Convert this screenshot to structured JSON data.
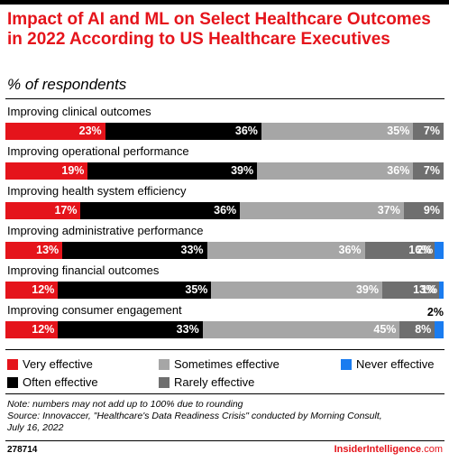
{
  "title": "Impact of AI and ML on Select Healthcare Outcomes in 2022 According to US Healthcare Executives",
  "subtitle": "% of respondents",
  "colors": {
    "very_effective": "#e5141b",
    "often_effective": "#000000",
    "sometimes_effective": "#a6a6a6",
    "rarely_effective": "#6f6f6f",
    "never_effective": "#1a7cf0",
    "title": "#e5141b"
  },
  "chart_data": {
    "type": "bar",
    "orientation": "horizontal",
    "stacked": true,
    "title": "Impact of AI and ML on Select Healthcare Outcomes in 2022 According to US Healthcare Executives",
    "subtitle": "% of respondents",
    "categories": [
      "Improving clinical outcomes",
      "Improving operational performance",
      "Improving health system efficiency",
      "Improving administrative performance",
      "Improving financial outcomes",
      "Improving consumer engagement"
    ],
    "series": [
      {
        "name": "Very effective",
        "key": "very_effective",
        "values": [
          23,
          19,
          17,
          13,
          12,
          12
        ]
      },
      {
        "name": "Often effective",
        "key": "often_effective",
        "values": [
          36,
          39,
          36,
          33,
          35,
          33
        ]
      },
      {
        "name": "Sometimes effective",
        "key": "sometimes_effective",
        "values": [
          35,
          36,
          37,
          36,
          39,
          45
        ]
      },
      {
        "name": "Rarely effective",
        "key": "rarely_effective",
        "values": [
          7,
          7,
          9,
          16,
          13,
          8
        ]
      },
      {
        "name": "Never effective",
        "key": "never_effective",
        "values": [
          null,
          null,
          null,
          2,
          1,
          2
        ]
      }
    ],
    "xlim": [
      0,
      100
    ],
    "grid": false,
    "legend_position": "bottom"
  },
  "legend": [
    {
      "label": "Very effective",
      "key": "very_effective"
    },
    {
      "label": "Sometimes effective",
      "key": "sometimes_effective"
    },
    {
      "label": "Never effective",
      "key": "never_effective"
    },
    {
      "label": "Often effective",
      "key": "often_effective"
    },
    {
      "label": "Rarely effective",
      "key": "rarely_effective"
    }
  ],
  "note": {
    "line1": "Note: numbers may not add up to 100% due to rounding",
    "line2": "Source: Innovaccer, \"Healthcare's Data Readiness Crisis\" conducted by Morning Consult,",
    "line3": "July 16, 2022"
  },
  "footer": {
    "id": "278714",
    "brand_part1": "InsiderIntelligence",
    "brand_part2": ".com"
  }
}
